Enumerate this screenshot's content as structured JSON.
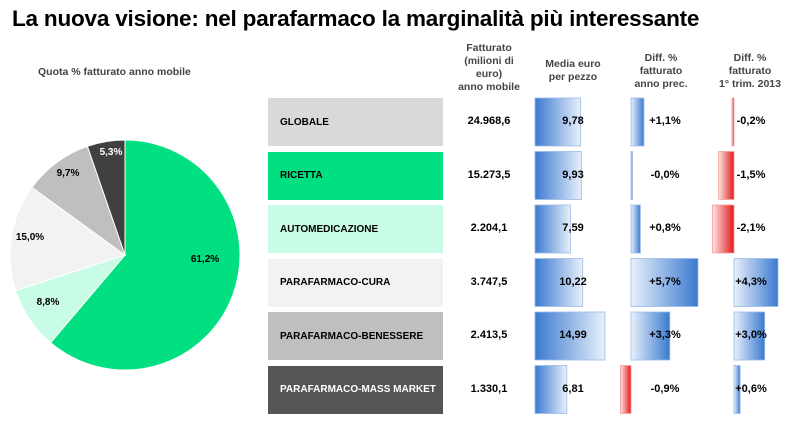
{
  "title": "La nuova visione: nel parafarmaco la marginalità più interessante",
  "pie_caption": "Quota % fatturato anno mobile",
  "columns": {
    "fatturato": "Fatturato\n(milioni di\neuro)\nanno mobile",
    "media": "Media euro\nper pezzo",
    "diff_anno": "Diff. %\nfatturato\nanno prec.",
    "diff_trim": "Diff. %\nfatturato\n1° trim. 2013"
  },
  "colors": {
    "globale": "#d9d9d9",
    "ricetta": "#00e081",
    "automedicazione": "#c8fce6",
    "cura": "#f2f2f2",
    "benessere": "#bfbfbf",
    "mass_market": "#555555",
    "blue_bar": "#6a9bd8",
    "red_bar": "#e81c1c"
  },
  "chart_data": [
    {
      "type": "pie",
      "title": "Quota % fatturato anno mobile",
      "slices": [
        {
          "category": "RICETTA",
          "value": 61.2,
          "label": "61,2%",
          "color": "#00e081"
        },
        {
          "category": "AUTOMEDICAZIONE",
          "value": 8.8,
          "label": "8,8%",
          "color": "#c8fce6"
        },
        {
          "category": "PARAFARMACO-CURA",
          "value": 15.0,
          "label": "15,0%",
          "color": "#f2f2f2"
        },
        {
          "category": "PARAFARMACO-BENESSERE",
          "value": 9.7,
          "label": "9,7%",
          "color": "#bfbfbf"
        },
        {
          "category": "PARAFARMACO-MASS MARKET",
          "value": 5.3,
          "label": "5,3%",
          "color": "#404040"
        }
      ]
    },
    {
      "type": "table",
      "rows": [
        {
          "category": "GLOBALE",
          "fatturato": "24.968,6",
          "media": 9.78,
          "media_label": "9,78",
          "diff_anno": 1.1,
          "diff_anno_label": "+1,1%",
          "diff_trim": -0.2,
          "diff_trim_label": "-0,2%",
          "color": "#d9d9d9",
          "text_color": "#000000"
        },
        {
          "category": "RICETTA",
          "fatturato": "15.273,5",
          "media": 9.93,
          "media_label": "9,93",
          "diff_anno": -0.0,
          "diff_anno_label": "-0,0%",
          "diff_trim": -1.5,
          "diff_trim_label": "-1,5%",
          "color": "#00e081",
          "text_color": "#000000"
        },
        {
          "category": "AUTOMEDICAZIONE",
          "fatturato": "2.204,1",
          "media": 7.59,
          "media_label": "7,59",
          "diff_anno": 0.8,
          "diff_anno_label": "+0,8%",
          "diff_trim": -2.1,
          "diff_trim_label": "-2,1%",
          "color": "#c8fce6",
          "text_color": "#000000"
        },
        {
          "category": "PARAFARMACO-CURA",
          "fatturato": "3.747,5",
          "media": 10.22,
          "media_label": "10,22",
          "diff_anno": 5.7,
          "diff_anno_label": "+5,7%",
          "diff_trim": 4.3,
          "diff_trim_label": "+4,3%",
          "color": "#f2f2f2",
          "text_color": "#000000"
        },
        {
          "category": "PARAFARMACO-BENESSERE",
          "fatturato": "2.413,5",
          "media": 14.99,
          "media_label": "14,99",
          "diff_anno": 3.3,
          "diff_anno_label": "+3,3%",
          "diff_trim": 3.0,
          "diff_trim_label": "+3,0%",
          "color": "#bfbfbf",
          "text_color": "#000000"
        },
        {
          "category": "PARAFARMACO-MASS MARKET",
          "fatturato": "1.330,1",
          "media": 6.81,
          "media_label": "6,81",
          "diff_anno": -0.9,
          "diff_anno_label": "-0,9%",
          "diff_trim": 0.6,
          "diff_trim_label": "+0,6%",
          "color": "#555555",
          "text_color": "#ffffff"
        }
      ]
    }
  ]
}
